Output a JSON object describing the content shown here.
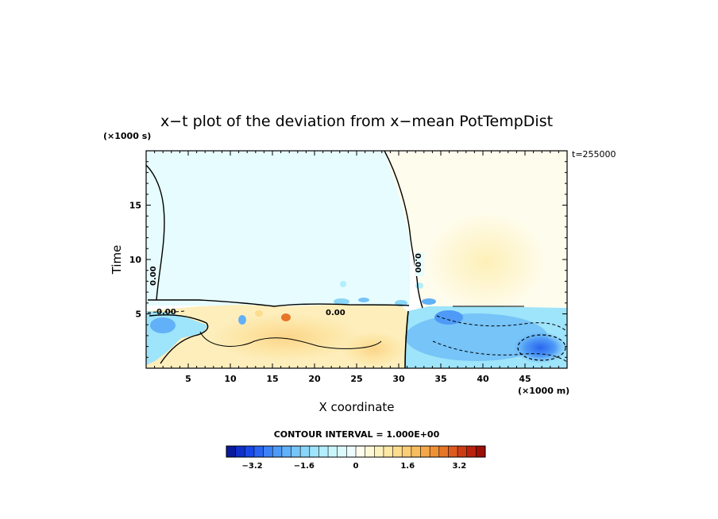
{
  "chart_data": {
    "type": "heatmap",
    "title": "x−t plot of the deviation from x−mean PotTempDist",
    "xlabel": "X coordinate",
    "ylabel": "Time",
    "x_unit": "(×1000 m)",
    "y_unit": "(×1000 s)",
    "annotation": "t=255000",
    "xlim": [
      0,
      50
    ],
    "ylim": [
      0,
      20
    ],
    "x_ticks": [
      5,
      10,
      15,
      20,
      25,
      30,
      35,
      40,
      45
    ],
    "y_ticks": [
      5,
      10,
      15
    ],
    "contour_interval": "CONTOUR INTERVAL = 1.000E+00",
    "contour_labels": [
      "0.00",
      "0.00",
      "0.00",
      "0.00"
    ],
    "colorbar": {
      "range": [
        -4,
        4
      ],
      "tick_values": [
        -3.2,
        -1.6,
        0,
        1.6,
        3.2
      ],
      "tick_labels": [
        "−3.2",
        "−1.6",
        "0",
        "1.6",
        "3.2"
      ],
      "colors": [
        "#0a1a9a",
        "#1030c8",
        "#1848e6",
        "#2a64f0",
        "#3c82f4",
        "#4e9af6",
        "#62b0f8",
        "#76c4f8",
        "#8ad6f8",
        "#9ee4fa",
        "#b2eefc",
        "#c8f6fc",
        "#dcfafd",
        "#eefcff",
        "#fefcef",
        "#fdf8d6",
        "#fdf2be",
        "#fde8a6",
        "#fcdc8e",
        "#fbcd76",
        "#f8bc5e",
        "#f4a84a",
        "#ee9036",
        "#e67628",
        "#dc5a1e",
        "#cc3c14",
        "#b8220e",
        "#9c1008"
      ]
    },
    "regions": [
      {
        "name": "upper-left (x<31, t>5.5)",
        "value": -0.1
      },
      {
        "name": "upper-right (x>31, t>5.5)",
        "value": 0.1
      },
      {
        "name": "upper-right warm core near x=40, t=10",
        "value": 0.3
      },
      {
        "name": "lower-left (x<31, t<5.5)",
        "value": 0.8
      },
      {
        "name": "lower-left warm core near x=15, t=3",
        "value": 1.4
      },
      {
        "name": "lower-right (x>31, t<5.5)",
        "value": -1.5
      },
      {
        "name": "lower-right cold core near x=46, t=2",
        "value": -2.8
      }
    ]
  }
}
